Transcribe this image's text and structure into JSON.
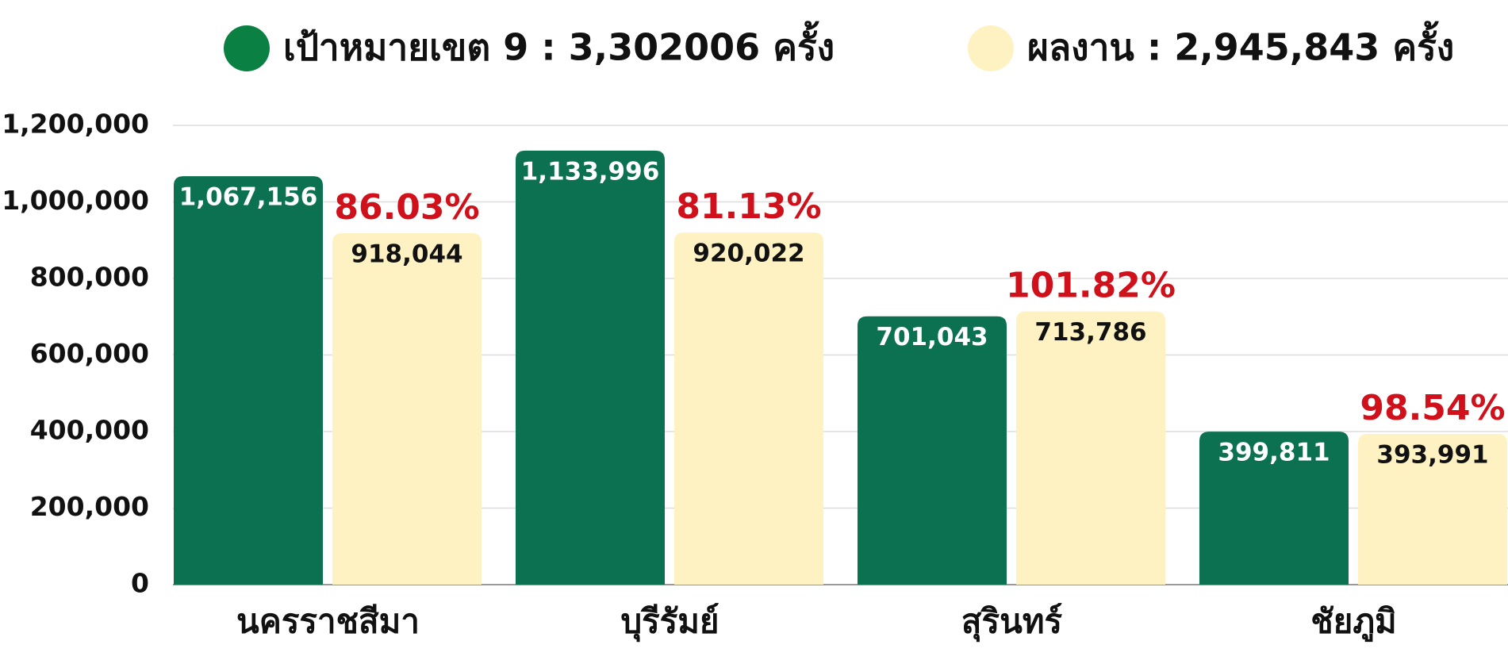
{
  "chart_data": {
    "type": "bar",
    "categories": [
      "นครราชสีมา",
      "บุรีรัมย์",
      "สุรินทร์",
      "ชัยภูมิ"
    ],
    "series": [
      {
        "name": "เป้าหมายเขต 9 : 3,302006 ครั้ง",
        "color": "#0b7150",
        "legend_color": "#0a8042",
        "values": [
          1067156,
          1133996,
          701043,
          399811
        ],
        "value_labels": [
          "1,067,156",
          "1,133,996",
          "701,043",
          "399,811"
        ],
        "label_color": "#ffffff"
      },
      {
        "name": "ผลงาน : 2,945,843 ครั้ง",
        "color": "#fff2c2",
        "legend_color": "#fff2c2",
        "values": [
          918044,
          920022,
          713786,
          393991
        ],
        "value_labels": [
          "918,044",
          "920,022",
          "713,786",
          "393,991"
        ],
        "label_color": "#111111",
        "percentages": [
          86.03,
          81.13,
          101.82,
          98.54
        ],
        "percentage_labels": [
          "86.03%",
          "81.13%",
          "101.82%",
          "98.54%"
        ],
        "percentage_color": "#d0101a"
      }
    ],
    "ylim": [
      0,
      1200000
    ],
    "yticks": [
      0,
      {
        "value": 200000,
        "label": "200,000"
      },
      {
        "value": 400000,
        "label": "400,000"
      },
      {
        "value": 600000,
        "label": "600,000"
      },
      {
        "value": 800000,
        "label": "800,000"
      },
      {
        "value": 1000000,
        "label": "1,000,000"
      },
      {
        "value": 1200000,
        "label": "1,200,000"
      }
    ],
    "grid": true,
    "legend": "top"
  }
}
